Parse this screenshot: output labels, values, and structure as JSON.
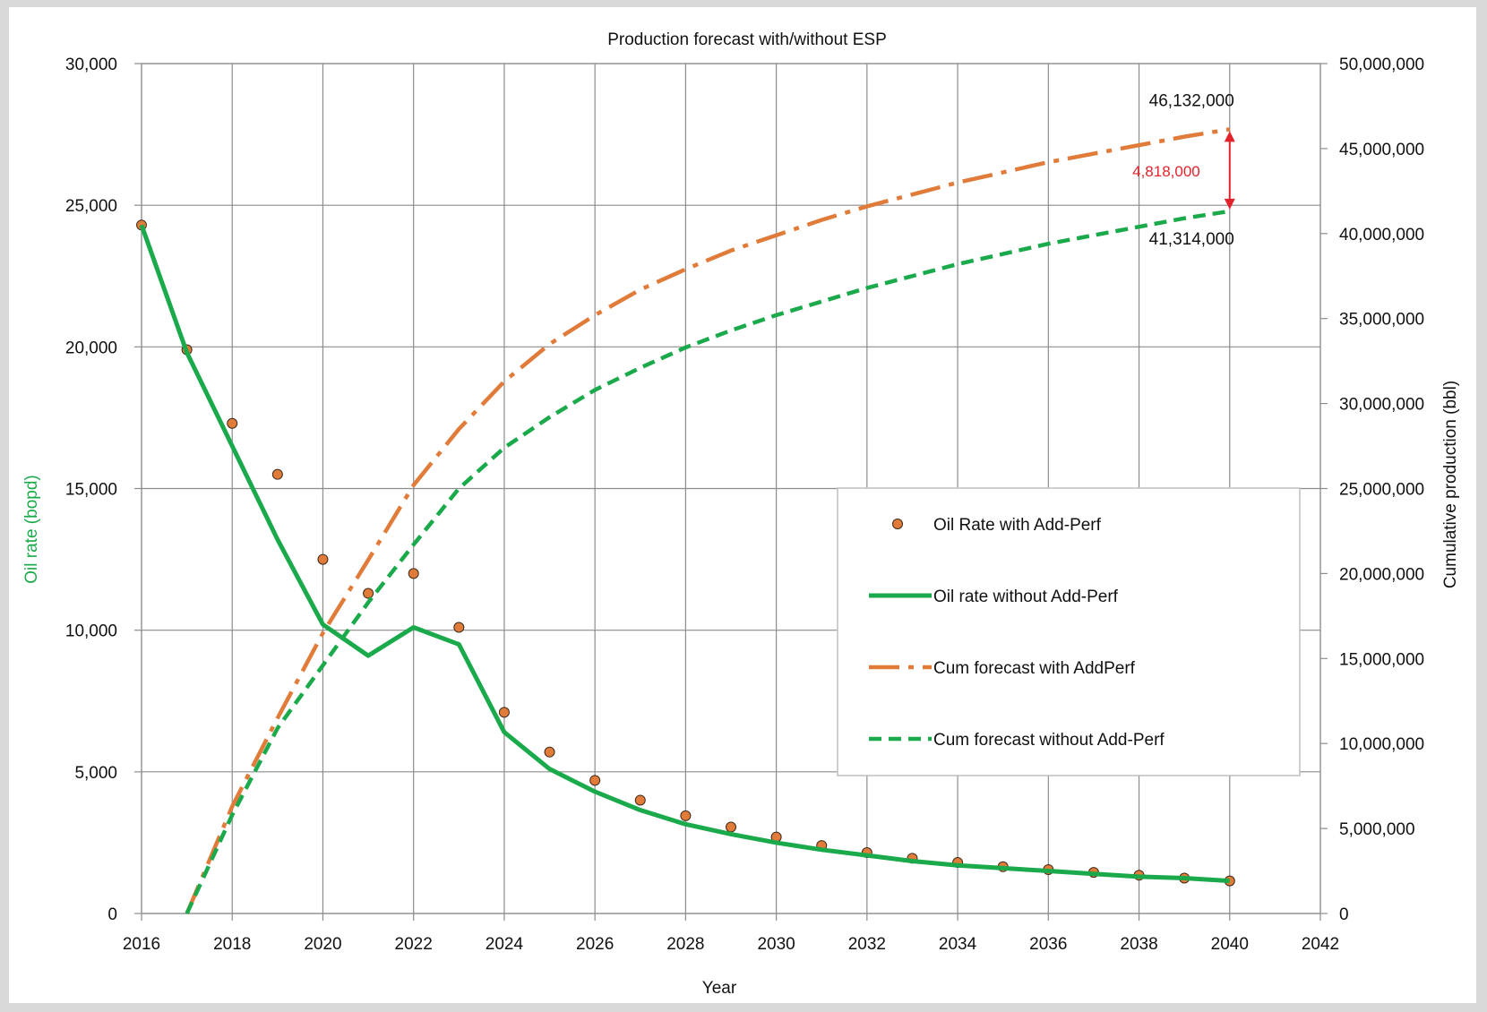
{
  "chart_data": {
    "type": "line",
    "title": "Production forecast with/without ESP",
    "xlabel": "Year",
    "ylabel_left": "Oil rate (bopd)",
    "ylabel_right": "Cumulative production (bbl)",
    "xlim": [
      2016,
      2042
    ],
    "xticks": [
      2016,
      2018,
      2020,
      2022,
      2024,
      2026,
      2028,
      2030,
      2032,
      2034,
      2036,
      2038,
      2040,
      2042
    ],
    "xtick_labels": [
      "2016",
      "2018",
      "2020",
      "2022",
      "2024",
      "2026",
      "2028",
      "2030",
      "2032",
      "2034",
      "2036",
      "2038",
      "2040",
      "2042"
    ],
    "ylim_left": [
      0,
      30000
    ],
    "yticks_left": [
      0,
      5000,
      10000,
      15000,
      20000,
      25000,
      30000
    ],
    "ytick_labels_left": [
      "0",
      "5,000",
      "10,000",
      "15,000",
      "20,000",
      "25,000",
      "30,000"
    ],
    "ylim_right": [
      0,
      50000000
    ],
    "yticks_right": [
      0,
      5000000,
      10000000,
      15000000,
      20000000,
      25000000,
      30000000,
      35000000,
      40000000,
      45000000,
      50000000
    ],
    "ytick_labels_right": [
      "0",
      "5,000,000",
      "10,000,000",
      "15,000,000",
      "20,000,000",
      "25,000,000",
      "30,000,000",
      "35,000,000",
      "40,000,000",
      "45,000,000",
      "50,000,000"
    ],
    "grid": true,
    "legend_position": "right",
    "series": [
      {
        "name": "Oil Rate with Add-Perf",
        "kind": "scatter",
        "axis": "left",
        "color": "#e07b39",
        "x": [
          2016,
          2017,
          2018,
          2019,
          2020,
          2021,
          2022,
          2023,
          2024,
          2025,
          2026,
          2027,
          2028,
          2029,
          2030,
          2031,
          2032,
          2033,
          2034,
          2035,
          2036,
          2037,
          2038,
          2039,
          2040
        ],
        "y": [
          24300,
          19900,
          17300,
          15500,
          12500,
          11300,
          12000,
          10100,
          7100,
          5700,
          4700,
          4000,
          3450,
          3050,
          2700,
          2400,
          2150,
          1950,
          1800,
          1650,
          1550,
          1450,
          1350,
          1250,
          1150
        ]
      },
      {
        "name": "Oil rate without Add-Perf",
        "kind": "line",
        "style": "solid",
        "axis": "left",
        "color": "#1aaa4b",
        "x": [
          2016,
          2017,
          2018,
          2019,
          2020,
          2021,
          2022,
          2023,
          2024,
          2025,
          2026,
          2027,
          2028,
          2029,
          2030,
          2031,
          2032,
          2033,
          2034,
          2035,
          2036,
          2037,
          2038,
          2039,
          2040
        ],
        "y": [
          24300,
          19800,
          16500,
          13200,
          10200,
          9100,
          10100,
          9500,
          6400,
          5100,
          4300,
          3650,
          3150,
          2800,
          2500,
          2250,
          2050,
          1850,
          1700,
          1600,
          1500,
          1400,
          1300,
          1250,
          1150
        ]
      },
      {
        "name": "Cum forecast with AddPerf",
        "kind": "line",
        "style": "dash-dot",
        "axis": "right",
        "color": "#e07b39",
        "x": [
          2017,
          2018,
          2019,
          2020,
          2021,
          2022,
          2023,
          2024,
          2025,
          2026,
          2027,
          2028,
          2029,
          2030,
          2031,
          2032,
          2033,
          2034,
          2035,
          2036,
          2037,
          2038,
          2039,
          2040
        ],
        "y": [
          0,
          6300000,
          11500000,
          16500000,
          20800000,
          25200000,
          28500000,
          31300000,
          33500000,
          35200000,
          36700000,
          37900000,
          39000000,
          39900000,
          40800000,
          41600000,
          42300000,
          43000000,
          43600000,
          44200000,
          44700000,
          45200000,
          45700000,
          46132000
        ]
      },
      {
        "name": "Cum forecast without Add-Perf",
        "kind": "line",
        "style": "dashed",
        "axis": "right",
        "color": "#1aaa4b",
        "x": [
          2017,
          2018,
          2019,
          2020,
          2021,
          2022,
          2023,
          2024,
          2025,
          2026,
          2027,
          2028,
          2029,
          2030,
          2031,
          2032,
          2033,
          2034,
          2035,
          2036,
          2037,
          2038,
          2039,
          2040
        ],
        "y": [
          0,
          5800000,
          10900000,
          14600000,
          18300000,
          21700000,
          25000000,
          27400000,
          29200000,
          30800000,
          32100000,
          33300000,
          34300000,
          35200000,
          36000000,
          36800000,
          37500000,
          38200000,
          38800000,
          39400000,
          39900000,
          40400000,
          40900000,
          41314000
        ]
      }
    ],
    "annotations": [
      {
        "text": "46,132,000",
        "x": 2040,
        "y": 46132000,
        "axis": "right"
      },
      {
        "text": "41,314,000",
        "x": 2040,
        "y": 41314000,
        "axis": "right"
      },
      {
        "text": "4,818,000",
        "x": 2040,
        "y": 43723000,
        "axis": "right",
        "color": "#e3232c"
      }
    ],
    "arrow_color": "#e3232c"
  }
}
